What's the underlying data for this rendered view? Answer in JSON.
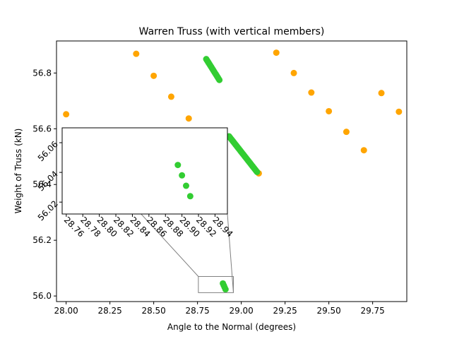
{
  "chart_data": {
    "type": "scatter",
    "title": "Warren Truss (with vertical members)",
    "xlabel": "Angle to the Normal (degrees)",
    "ylabel": "Weight of Truss (kN)",
    "xlim": [
      27.945,
      29.945
    ],
    "ylim": [
      55.98,
      56.915
    ],
    "xticks": [
      "28.00",
      "28.25",
      "28.50",
      "28.75",
      "29.00",
      "29.25",
      "29.50",
      "29.75"
    ],
    "yticks": [
      "56.0",
      "56.2",
      "56.4",
      "56.6",
      "56.8"
    ],
    "grid": false,
    "colors": {
      "coarse": "#ffa500",
      "fine": "#32cd32"
    },
    "series": [
      {
        "color": "#ffa500",
        "x": [
          28.0,
          28.4,
          28.5,
          28.6,
          28.7,
          29.1,
          29.2,
          29.3,
          29.4,
          29.5,
          29.6,
          29.7,
          29.8,
          29.9
        ],
        "y": [
          56.652,
          56.869,
          56.79,
          56.715,
          56.637,
          56.44,
          56.873,
          56.8,
          56.73,
          56.663,
          56.589,
          56.523,
          56.728,
          56.661
        ]
      },
      {
        "color": "#32cd32",
        "x": [
          28.8,
          28.805,
          28.81,
          28.815,
          28.82,
          28.825,
          28.83,
          28.835,
          28.84,
          28.845,
          28.85,
          28.855,
          28.86,
          28.865,
          28.87,
          28.875,
          28.93,
          28.935,
          28.94,
          28.945,
          28.95,
          28.955,
          28.96,
          28.965,
          28.97,
          28.975,
          28.98,
          28.985,
          28.99,
          28.995,
          29.0,
          29.005,
          29.01,
          29.015,
          29.02,
          29.025,
          29.03,
          29.035,
          29.04,
          29.045,
          29.05,
          29.055,
          29.06,
          29.065,
          29.07,
          29.075,
          29.08,
          29.085,
          29.09,
          28.895,
          28.9,
          28.905,
          28.91
        ],
        "y": [
          56.85,
          56.845,
          56.84,
          56.835,
          56.83,
          56.825,
          56.82,
          56.815,
          56.81,
          56.805,
          56.8,
          56.795,
          56.79,
          56.785,
          56.78,
          56.775,
          56.573,
          56.569,
          56.565,
          56.561,
          56.557,
          56.553,
          56.549,
          56.545,
          56.541,
          56.537,
          56.533,
          56.529,
          56.525,
          56.521,
          56.517,
          56.513,
          56.509,
          56.505,
          56.501,
          56.497,
          56.493,
          56.489,
          56.485,
          56.481,
          56.477,
          56.473,
          56.469,
          56.465,
          56.461,
          56.457,
          56.453,
          56.449,
          56.445,
          56.045,
          56.038,
          56.031,
          56.024
        ]
      }
    ],
    "inset": {
      "xlim": [
        28.755,
        28.955
      ],
      "ylim": [
        56.012,
        56.07
      ],
      "xticks": [
        "28.76",
        "28.78",
        "28.80",
        "28.82",
        "28.84",
        "28.86",
        "28.88",
        "28.90",
        "28.92",
        "28.94"
      ],
      "yticks": [
        "56.02",
        "56.04",
        "56.06"
      ],
      "x": [
        28.895,
        28.9,
        28.905,
        28.91
      ],
      "y": [
        56.045,
        56.038,
        56.031,
        56.024
      ],
      "zoom_region": {
        "x": [
          28.755,
          28.955
        ],
        "y": [
          56.012,
          56.07
        ]
      }
    }
  }
}
